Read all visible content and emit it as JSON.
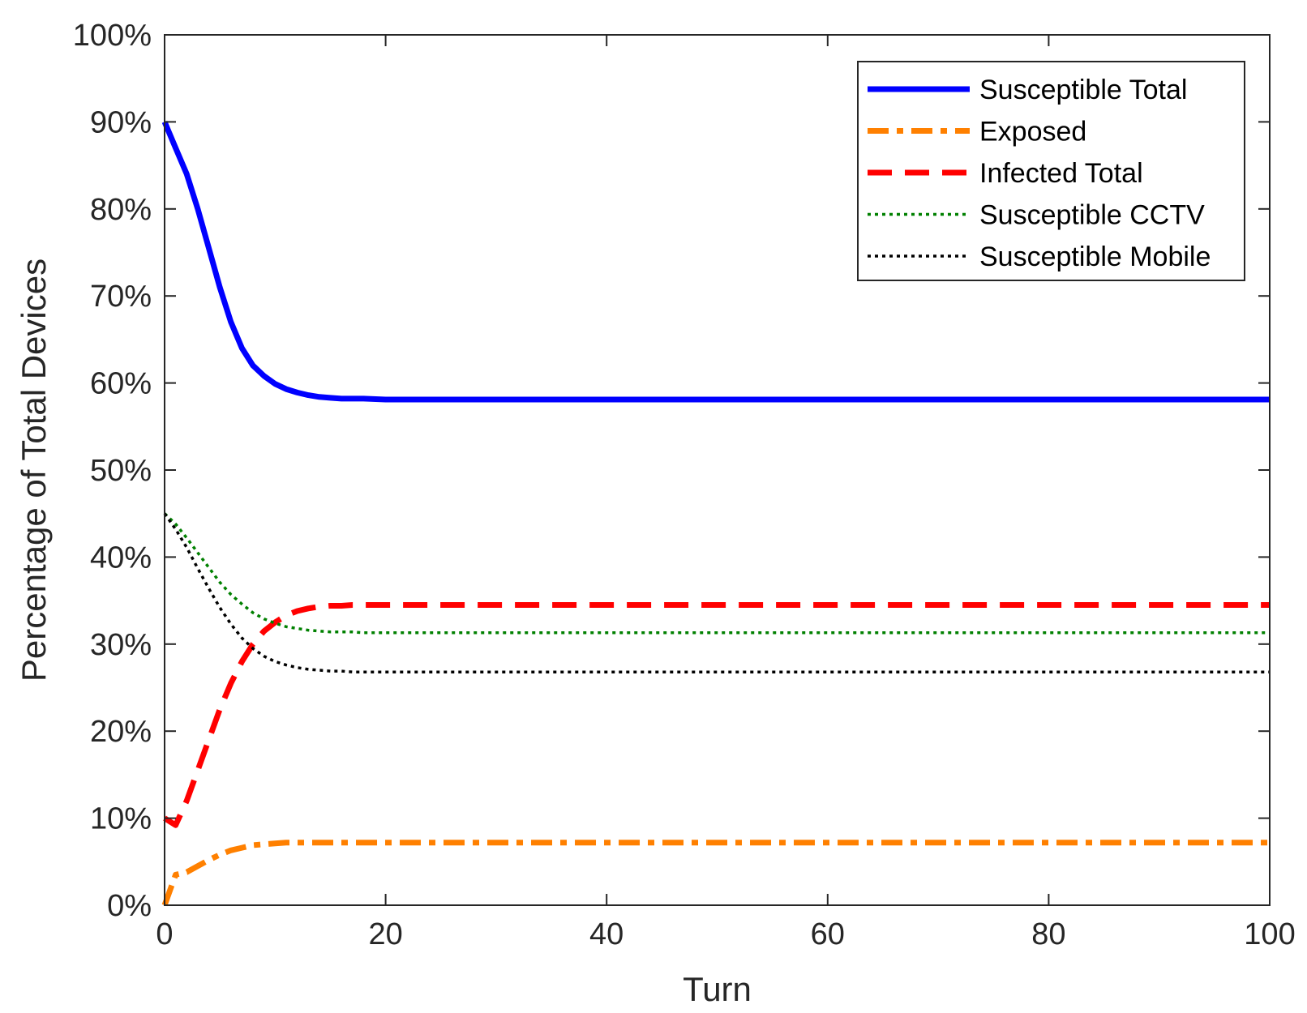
{
  "chart_data": {
    "type": "line",
    "title": "",
    "xlabel": "Turn",
    "ylabel": "Percentage of Total Devices",
    "xlim": [
      0,
      100
    ],
    "ylim": [
      0,
      100
    ],
    "x_ticks": [
      0,
      20,
      40,
      60,
      80,
      100
    ],
    "x_tick_labels": [
      "0",
      "20",
      "40",
      "60",
      "80",
      "100"
    ],
    "y_ticks": [
      0,
      10,
      20,
      30,
      40,
      50,
      60,
      70,
      80,
      90,
      100
    ],
    "y_tick_labels": [
      "0%",
      "10%",
      "20%",
      "30%",
      "40%",
      "50%",
      "60%",
      "70%",
      "80%",
      "90%",
      "100%"
    ],
    "grid": false,
    "legend_position": "top-right",
    "x": [
      0,
      1,
      2,
      3,
      4,
      5,
      6,
      7,
      8,
      9,
      10,
      11,
      12,
      13,
      14,
      15,
      16,
      17,
      18,
      20,
      25,
      30,
      40,
      50,
      60,
      70,
      80,
      90,
      100
    ],
    "series": [
      {
        "name": "Susceptible Total",
        "color": "#0000ff",
        "style": "solid",
        "values": [
          90,
          87,
          84,
          80,
          75.5,
          71,
          67,
          64,
          62,
          60.8,
          59.9,
          59.3,
          58.9,
          58.6,
          58.4,
          58.3,
          58.2,
          58.2,
          58.2,
          58.1,
          58.1,
          58.1,
          58.1,
          58.1,
          58.1,
          58.1,
          58.1,
          58.1,
          58.1
        ]
      },
      {
        "name": "Exposed",
        "color": "#ff8000",
        "style": "dashdot",
        "values": [
          0,
          3.5,
          3.8,
          4.5,
          5.2,
          5.8,
          6.3,
          6.6,
          6.9,
          7.0,
          7.1,
          7.2,
          7.2,
          7.2,
          7.2,
          7.2,
          7.2,
          7.2,
          7.2,
          7.2,
          7.2,
          7.2,
          7.2,
          7.2,
          7.2,
          7.2,
          7.2,
          7.2,
          7.2
        ]
      },
      {
        "name": "Infected Total",
        "color": "#ff0000",
        "style": "dashed",
        "values": [
          10,
          9.2,
          12,
          15.5,
          19,
          22.5,
          25.5,
          28,
          30,
          31.5,
          32.5,
          33.3,
          33.8,
          34.1,
          34.3,
          34.4,
          34.4,
          34.5,
          34.5,
          34.5,
          34.5,
          34.5,
          34.5,
          34.5,
          34.5,
          34.5,
          34.5,
          34.5,
          34.5
        ]
      },
      {
        "name": "Susceptible CCTV",
        "color": "#008000",
        "style": "dotted",
        "values": [
          45,
          43.8,
          42.2,
          40.5,
          38.8,
          37.1,
          35.7,
          34.6,
          33.6,
          32.9,
          32.4,
          32.0,
          31.8,
          31.6,
          31.5,
          31.4,
          31.4,
          31.4,
          31.3,
          31.3,
          31.3,
          31.3,
          31.3,
          31.3,
          31.3,
          31.3,
          31.3,
          31.3,
          31.3
        ]
      },
      {
        "name": "Susceptible Mobile",
        "color": "#000000",
        "style": "dotted",
        "values": [
          45,
          43.2,
          41.1,
          38.7,
          36.4,
          34.2,
          32.3,
          30.7,
          29.5,
          28.6,
          28.0,
          27.6,
          27.3,
          27.1,
          27.0,
          26.9,
          26.9,
          26.8,
          26.8,
          26.8,
          26.8,
          26.8,
          26.8,
          26.8,
          26.8,
          26.8,
          26.8,
          26.8,
          26.8
        ]
      }
    ]
  }
}
